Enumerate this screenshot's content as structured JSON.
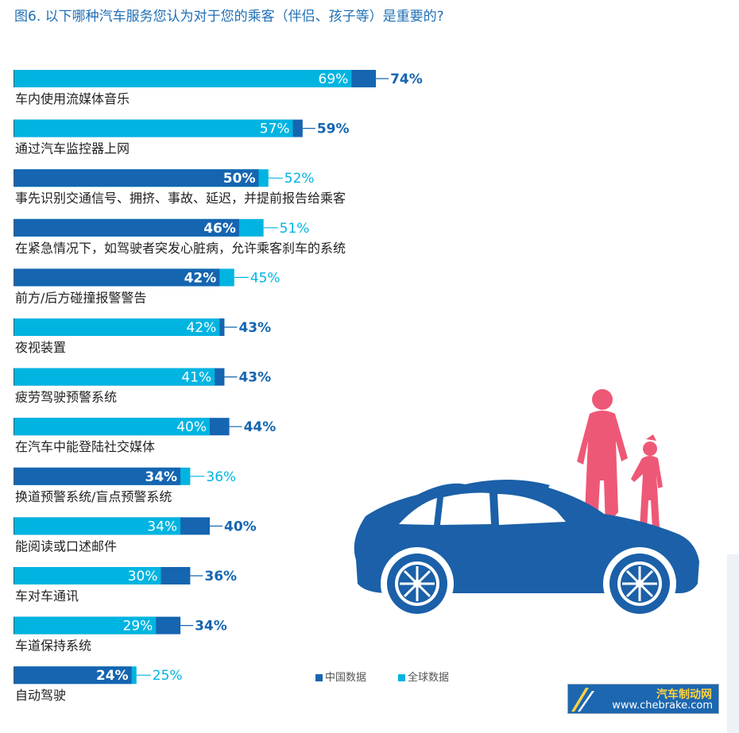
{
  "title": "图6. 以下哪种汽车服务您认为对于您的乘客（伴侣、孩子等）是重要的?",
  "legend": {
    "china": "中国数据",
    "global": "全球数据"
  },
  "colors": {
    "china": "#1565b0",
    "global": "#00b4e1"
  },
  "watermark": {
    "name": "汽车制动网",
    "url": "www.chebrake.com"
  },
  "chart_data": {
    "type": "bar",
    "orientation": "horizontal",
    "unit": "%",
    "xlim": [
      0,
      100
    ],
    "grid": false,
    "legend_position": "bottom-right",
    "categories": [
      "车内使用流媒体音乐",
      "通过汽车监控器上网",
      "事先识别交通信号、拥挤、事故、延迟，并提前报告给乘客",
      "在紧急情况下，如驾驶者突发心脏病，允许乘客刹车的系统",
      "前方/后方碰撞报警警告",
      "夜视装置",
      "疲劳驾驶预警系统",
      "在汽车中能登陆社交媒体",
      "换道预警系统/盲点预警系统",
      "能阅读或口述邮件",
      "车对车通讯",
      "车道保持系统",
      "自动驾驶"
    ],
    "series": [
      {
        "name": "中国数据",
        "values": [
          74,
          59,
          50,
          46,
          42,
          43,
          43,
          44,
          34,
          40,
          36,
          34,
          24
        ]
      },
      {
        "name": "全球数据",
        "values": [
          69,
          57,
          52,
          51,
          45,
          42,
          41,
          40,
          36,
          34,
          30,
          29,
          25
        ]
      }
    ]
  }
}
